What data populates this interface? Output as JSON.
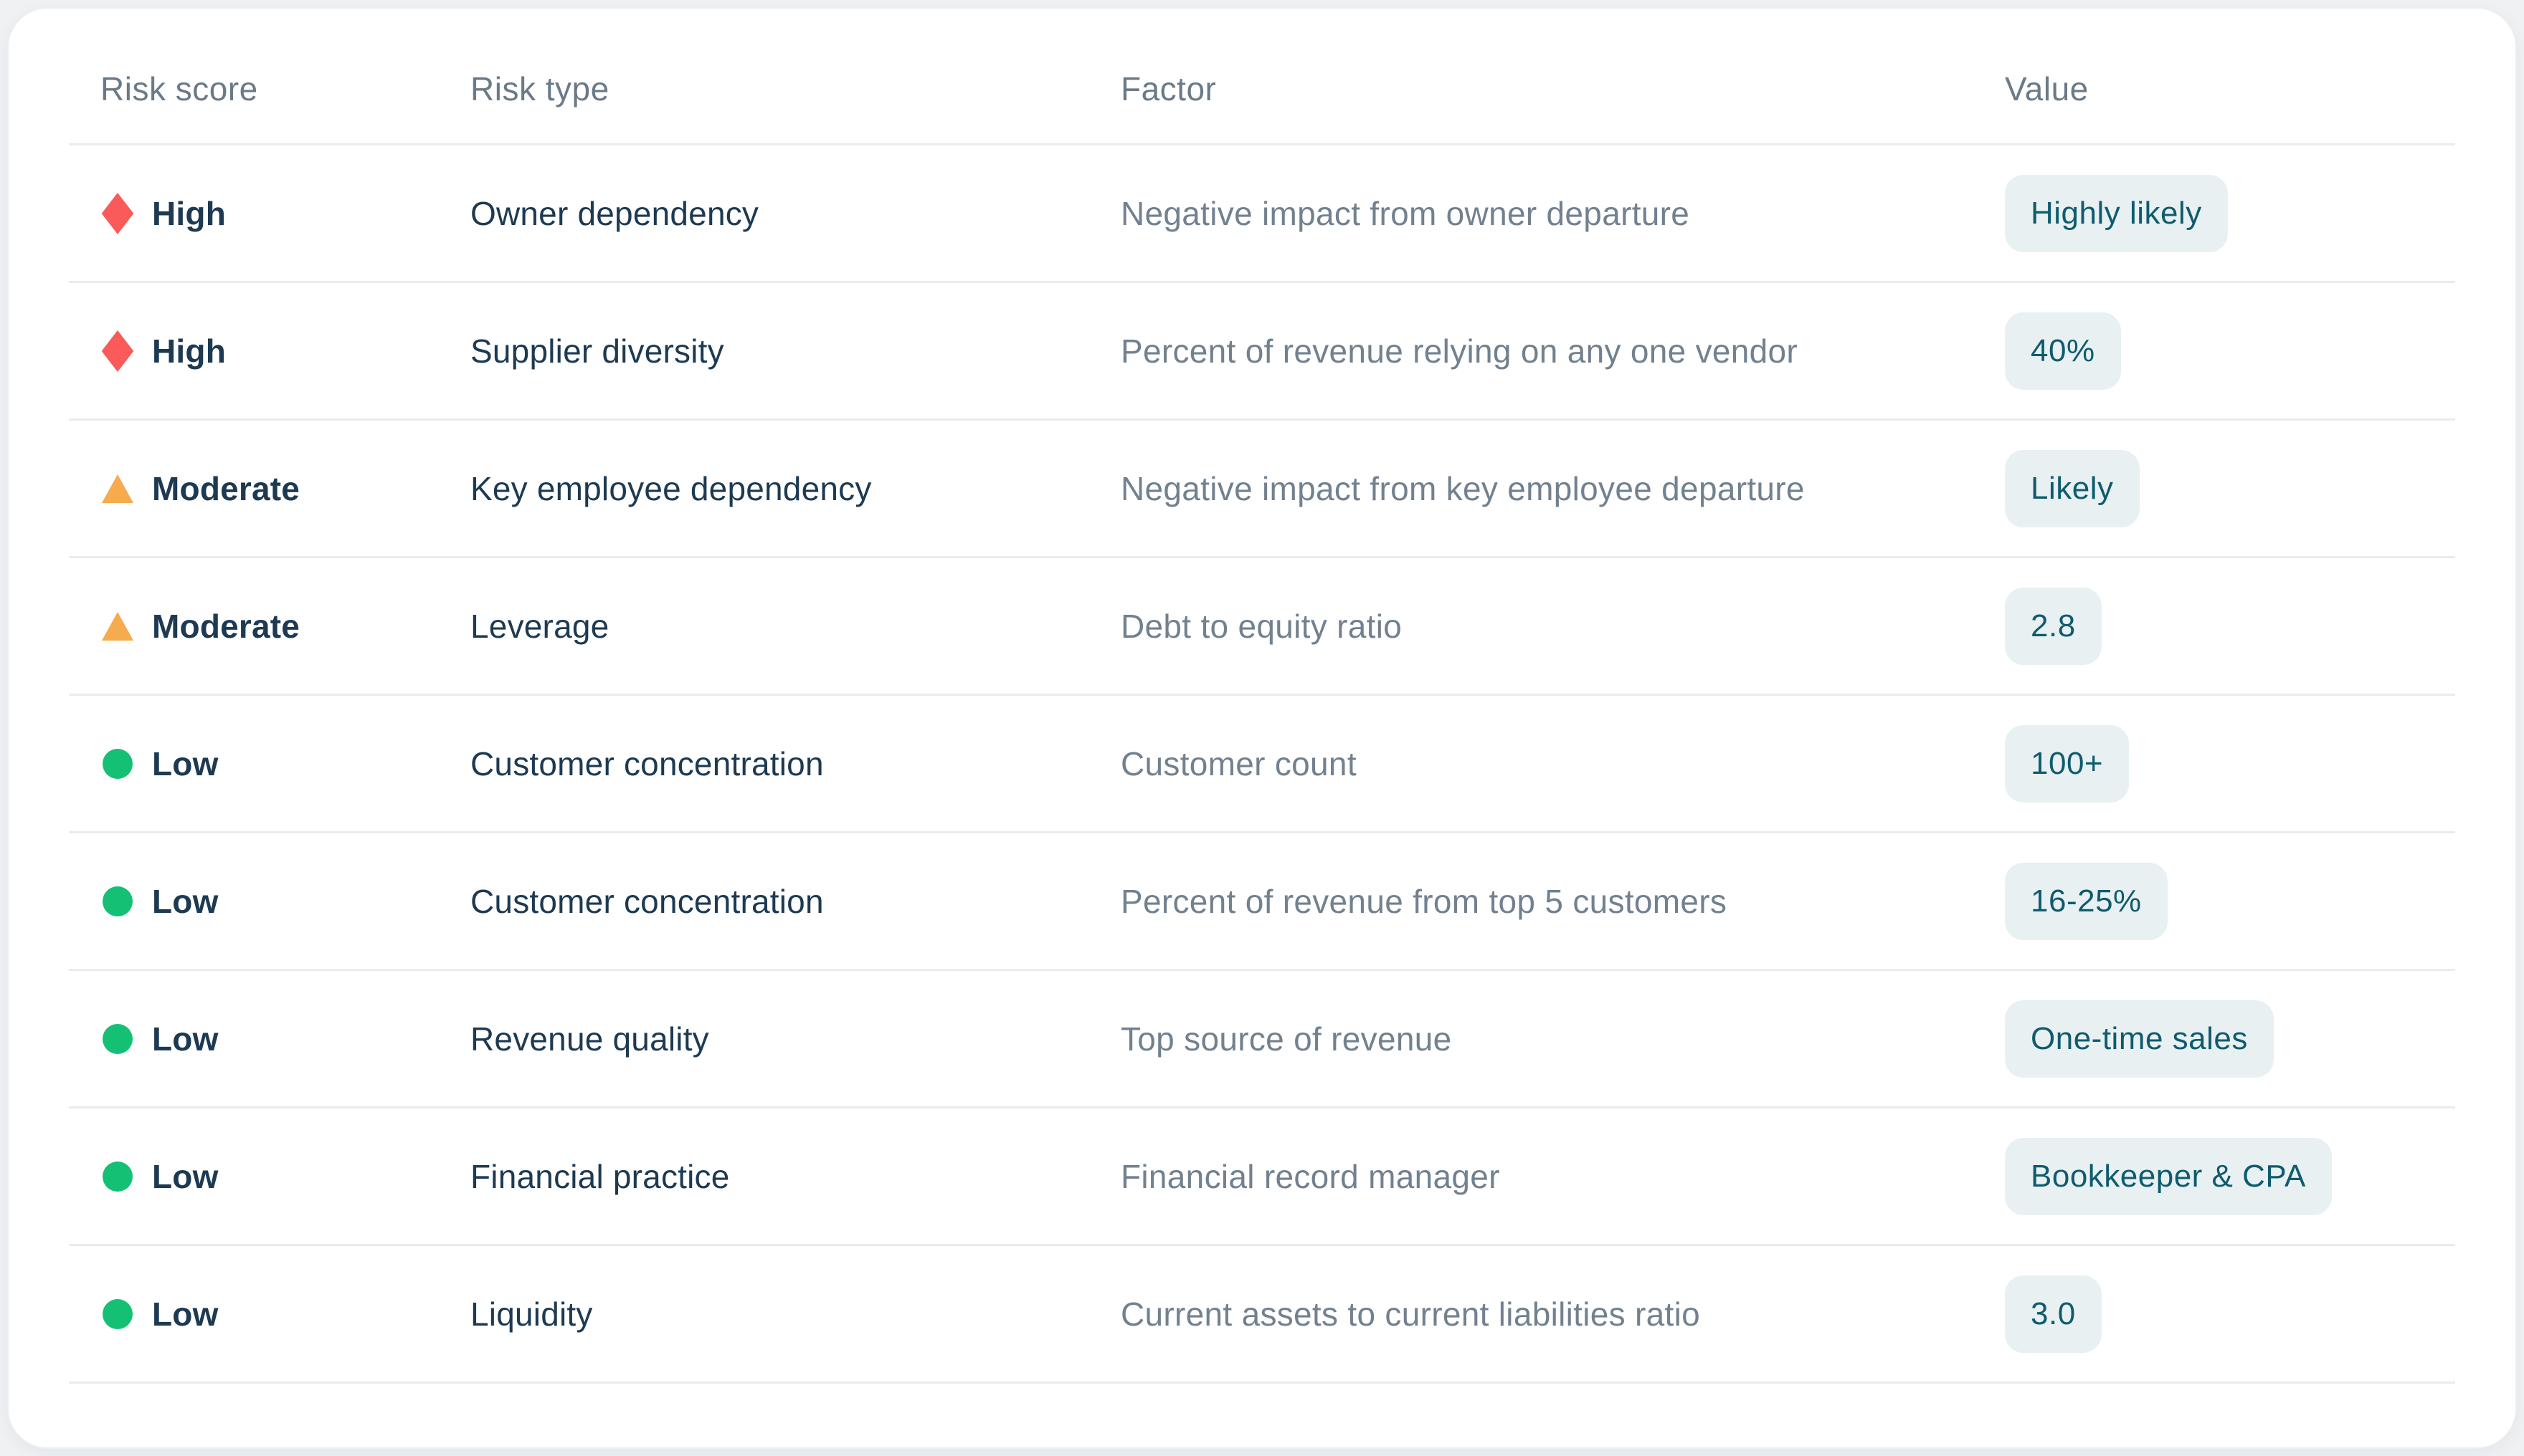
{
  "table": {
    "columns": [
      "Risk score",
      "Risk type",
      "Factor",
      "Value"
    ],
    "rows": [
      {
        "risk_score": "High",
        "risk_level": "high",
        "icon": "diamond-icon",
        "risk_type": "Owner dependency",
        "factor": "Negative impact from owner departure",
        "value": "Highly likely"
      },
      {
        "risk_score": "High",
        "risk_level": "high",
        "icon": "diamond-icon",
        "risk_type": "Supplier diversity",
        "factor": "Percent of revenue relying on any one vendor",
        "value": "40%"
      },
      {
        "risk_score": "Moderate",
        "risk_level": "moderate",
        "icon": "triangle-icon",
        "risk_type": "Key employee dependency",
        "factor": "Negative impact from key employee departure",
        "value": "Likely"
      },
      {
        "risk_score": "Moderate",
        "risk_level": "moderate",
        "icon": "triangle-icon",
        "risk_type": "Leverage",
        "factor": "Debt to equity ratio",
        "value": "2.8"
      },
      {
        "risk_score": "Low",
        "risk_level": "low",
        "icon": "circle-icon",
        "risk_type": "Customer concentration",
        "factor": "Customer count",
        "value": "100+"
      },
      {
        "risk_score": "Low",
        "risk_level": "low",
        "icon": "circle-icon",
        "risk_type": "Customer concentration",
        "factor": "Percent of revenue from top 5 customers",
        "value": "16-25%"
      },
      {
        "risk_score": "Low",
        "risk_level": "low",
        "icon": "circle-icon",
        "risk_type": "Revenue quality",
        "factor": "Top source of revenue",
        "value": "One-time sales"
      },
      {
        "risk_score": "Low",
        "risk_level": "low",
        "icon": "circle-icon",
        "risk_type": "Financial practice",
        "factor": "Financial record manager",
        "value": "Bookkeeper & CPA"
      },
      {
        "risk_score": "Low",
        "risk_level": "low",
        "icon": "circle-icon",
        "risk_type": "Liquidity",
        "factor": "Current assets to current liabilities ratio",
        "value": "3.0"
      }
    ]
  },
  "colors": {
    "high": "#fa5a5a",
    "moderate": "#f6ab4f",
    "low": "#14c174",
    "badge_bg": "#e8f0f2",
    "badge_text": "#0f5b6e",
    "primary_text": "#1d3a52",
    "secondary_text": "#72818f",
    "header_text": "#6b7a88",
    "page_bg": "#eff1f3",
    "card_bg": "#ffffff"
  }
}
